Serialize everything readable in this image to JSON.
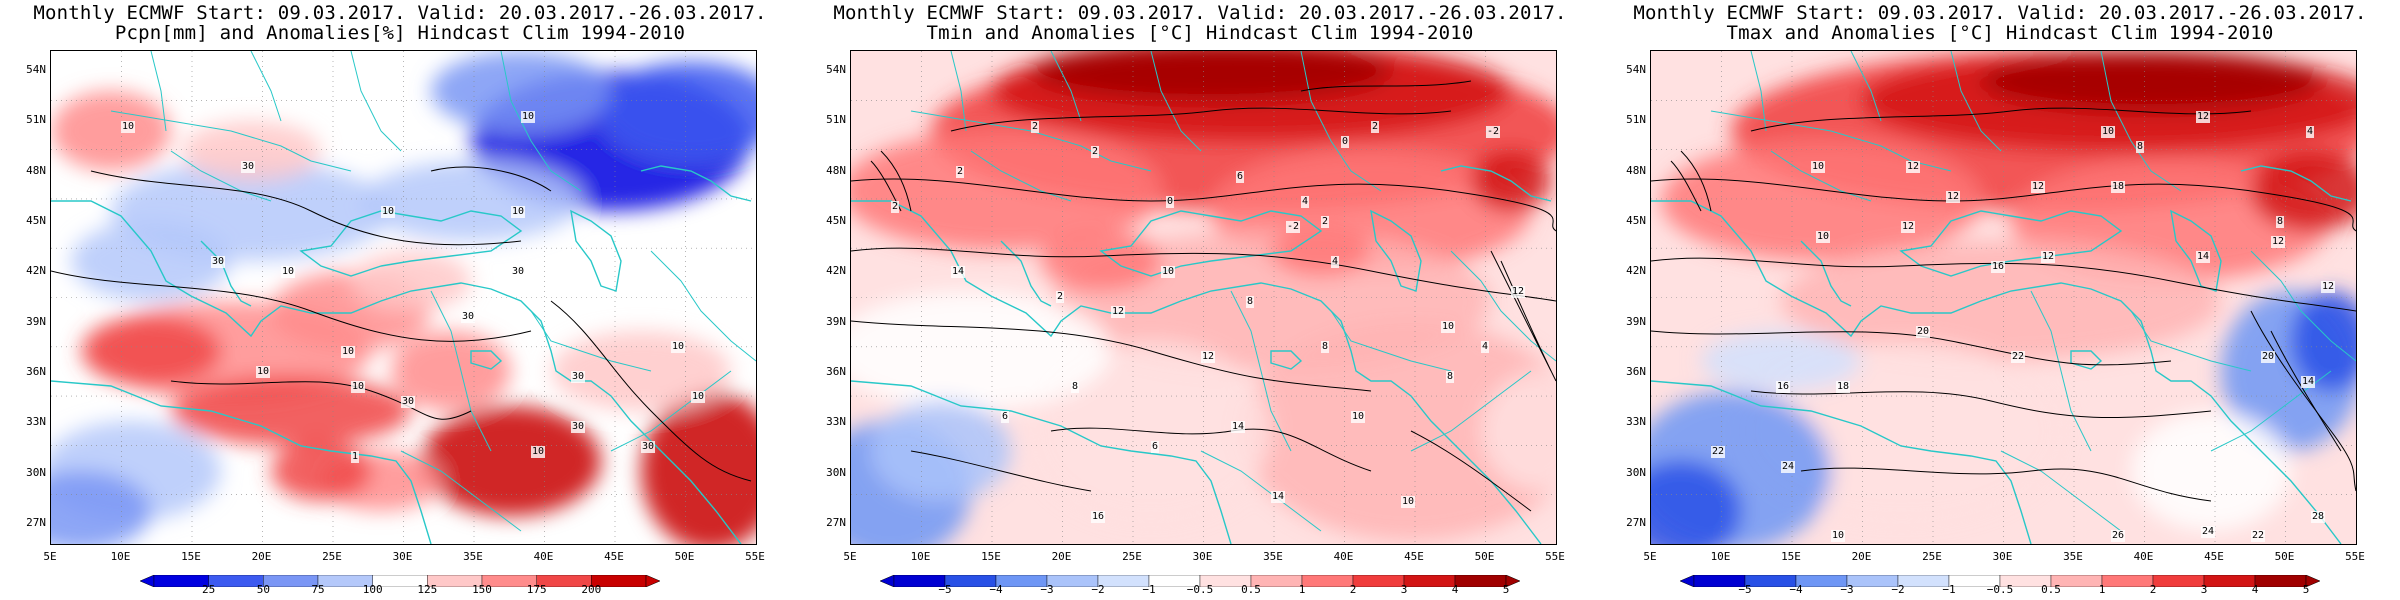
{
  "panels": [
    {
      "title1": "Monthly ECMWF Start: 09.03.2017. Valid: 20.03.2017.-26.03.2017.",
      "title2": "Pcpn[mm] and Anomalies[%] Hindcast Clim 1994-2010",
      "scheme": "precip",
      "colorbar_labels": [
        "25",
        "50",
        "75",
        "100",
        "125",
        "150",
        "175",
        "200"
      ],
      "contour_labels": [
        "10",
        "30",
        "10",
        "10",
        "10",
        "30",
        "10",
        "10",
        "30",
        "30",
        "30",
        "10",
        "10",
        "10",
        "30",
        "30",
        "10",
        "1",
        "30",
        "10"
      ]
    },
    {
      "title1": "Monthly ECMWF Start: 09.03.2017. Valid: 20.03.2017.-26.03.2017.",
      "title2": "Tmin and Anomalies [°C] Hindcast Clim 1994-2010",
      "scheme": "temp_min",
      "colorbar_labels": [
        "−5",
        "−4",
        "−3",
        "−2",
        "−1",
        "−0.5",
        "0.5",
        "1",
        "2",
        "3",
        "4",
        "5"
      ],
      "contour_labels": [
        "-2",
        "2",
        "2",
        "0",
        "2",
        "2",
        "2",
        "0",
        "4",
        "6",
        "2",
        "-2",
        "4",
        "10",
        "12",
        "8",
        "2",
        "10",
        "14",
        "12",
        "8",
        "6",
        "14",
        "10",
        "8",
        "14",
        "16",
        "10",
        "12",
        "4",
        "6",
        "8"
      ]
    },
    {
      "title1": "Monthly ECMWF Start: 09.03.2017. Valid: 20.03.2017.-26.03.2017.",
      "title2": "Tmax and Anomalies [°C] Hindcast Clim 1994-2010",
      "scheme": "temp_max",
      "colorbar_labels": [
        "−5",
        "−4",
        "−3",
        "−2",
        "−1",
        "−0.5",
        "0.5",
        "1",
        "2",
        "3",
        "4",
        "5"
      ],
      "contour_labels": [
        "4",
        "12",
        "10",
        "8",
        "10",
        "12",
        "12",
        "12",
        "18",
        "12",
        "10",
        "12",
        "8",
        "12",
        "14",
        "16",
        "20",
        "22",
        "16",
        "18",
        "14",
        "22",
        "24",
        "12",
        "20",
        "26",
        "28",
        "24",
        "22",
        "10"
      ]
    }
  ],
  "lat_labels": [
    "54N",
    "51N",
    "48N",
    "45N",
    "42N",
    "39N",
    "36N",
    "33N",
    "30N",
    "27N"
  ],
  "lon_labels": [
    "5E",
    "10E",
    "15E",
    "20E",
    "25E",
    "30E",
    "35E",
    "40E",
    "45E",
    "50E",
    "55E"
  ],
  "colors": {
    "coast": "#28c8c8",
    "contour": "#000000",
    "precip_scale": [
      "#0000e0",
      "#3c5af0",
      "#7a96f5",
      "#b4c8fa",
      "#ffffff",
      "#ffc8c8",
      "#ff8c8c",
      "#f04646",
      "#c80000"
    ],
    "temp_scale": [
      "#0000d2",
      "#2850e6",
      "#6e96f5",
      "#aac3fa",
      "#d2e1fd",
      "#ffffff",
      "#ffe1e1",
      "#ffb4b4",
      "#ff7878",
      "#f03c3c",
      "#d21414",
      "#a00000"
    ]
  }
}
